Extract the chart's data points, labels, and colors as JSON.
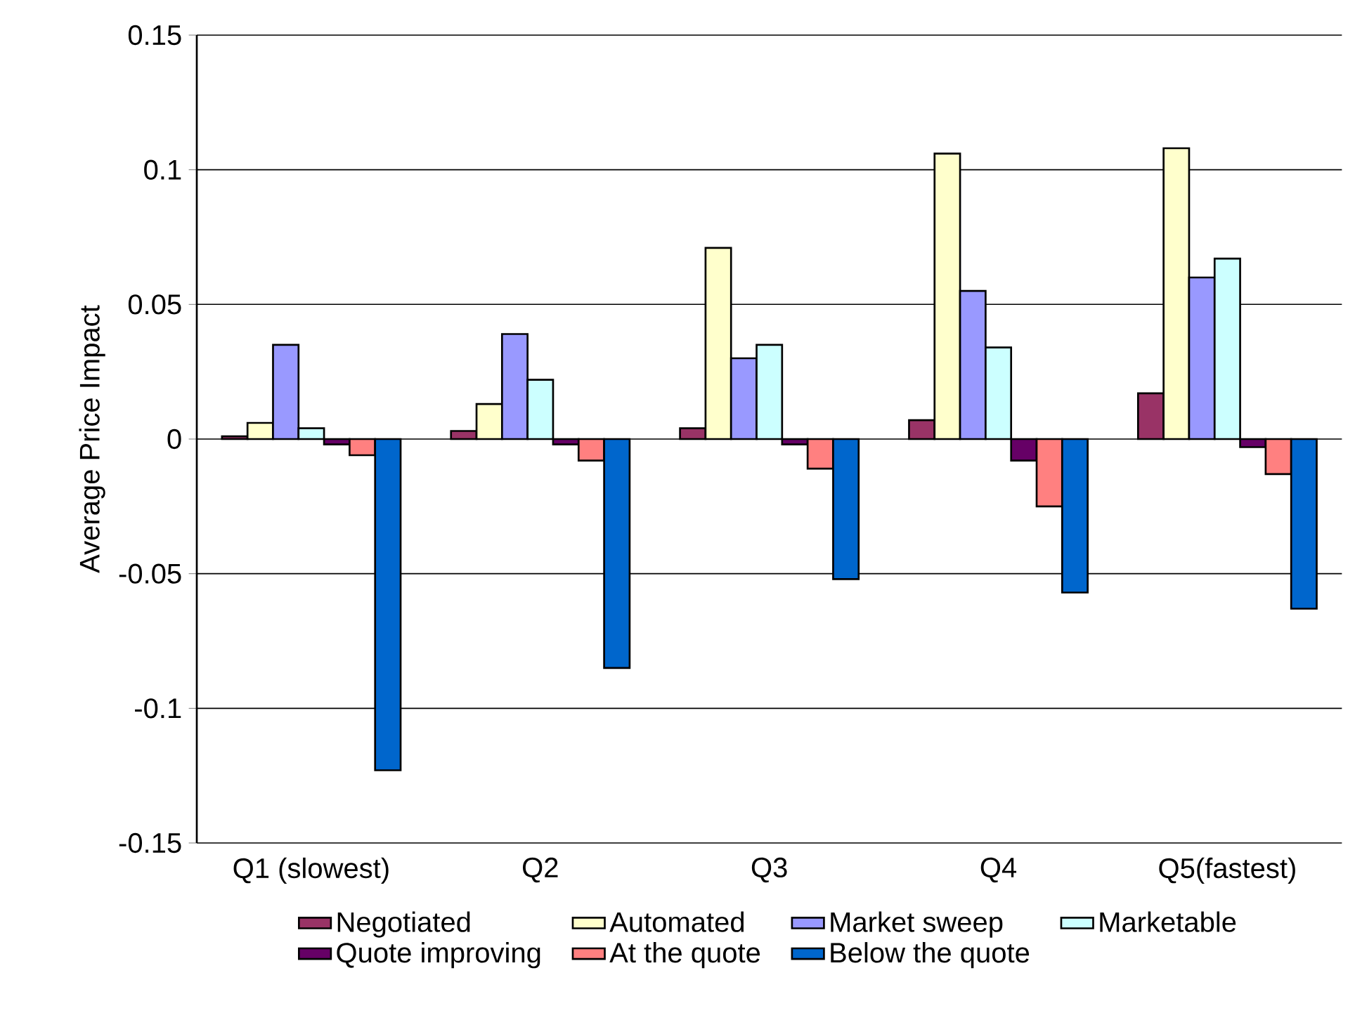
{
  "chart_data": {
    "type": "bar",
    "ylabel": "Average Price Impact",
    "categories": [
      "Q1 (slowest)",
      "Q2",
      "Q3",
      "Q4",
      "Q5(fastest)"
    ],
    "series": [
      {
        "name": "Negotiated",
        "color": "#993366",
        "values": [
          0.001,
          0.003,
          0.004,
          0.007,
          0.017
        ]
      },
      {
        "name": "Automated",
        "color": "#ffffcc",
        "values": [
          0.006,
          0.013,
          0.071,
          0.106,
          0.108
        ]
      },
      {
        "name": "Market sweep",
        "color": "#9999ff",
        "values": [
          0.035,
          0.039,
          0.03,
          0.055,
          0.06
        ]
      },
      {
        "name": "Marketable",
        "color": "#ccffff",
        "values": [
          0.004,
          0.022,
          0.035,
          0.034,
          0.067
        ]
      },
      {
        "name": "Quote improving",
        "color": "#660066",
        "values": [
          -0.002,
          -0.002,
          -0.002,
          -0.008,
          -0.003
        ]
      },
      {
        "name": "At the quote",
        "color": "#ff8080",
        "values": [
          -0.006,
          -0.008,
          -0.011,
          -0.025,
          -0.013
        ]
      },
      {
        "name": "Below the quote",
        "color": "#0066cc",
        "values": [
          -0.123,
          -0.085,
          -0.052,
          -0.057,
          -0.063
        ]
      }
    ],
    "ylim": [
      -0.15,
      0.15
    ],
    "yticks": [
      -0.15,
      -0.1,
      -0.05,
      0,
      0.05,
      0.1,
      0.15
    ],
    "grid": "y",
    "legend": "bottom"
  }
}
